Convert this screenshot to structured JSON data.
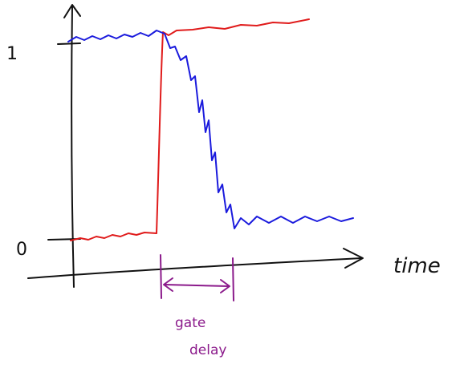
{
  "y_labels": {
    "high": "1",
    "low": "0"
  },
  "x_label": "time",
  "annotation": {
    "lines": [
      "gate",
      "delay"
    ]
  }
}
